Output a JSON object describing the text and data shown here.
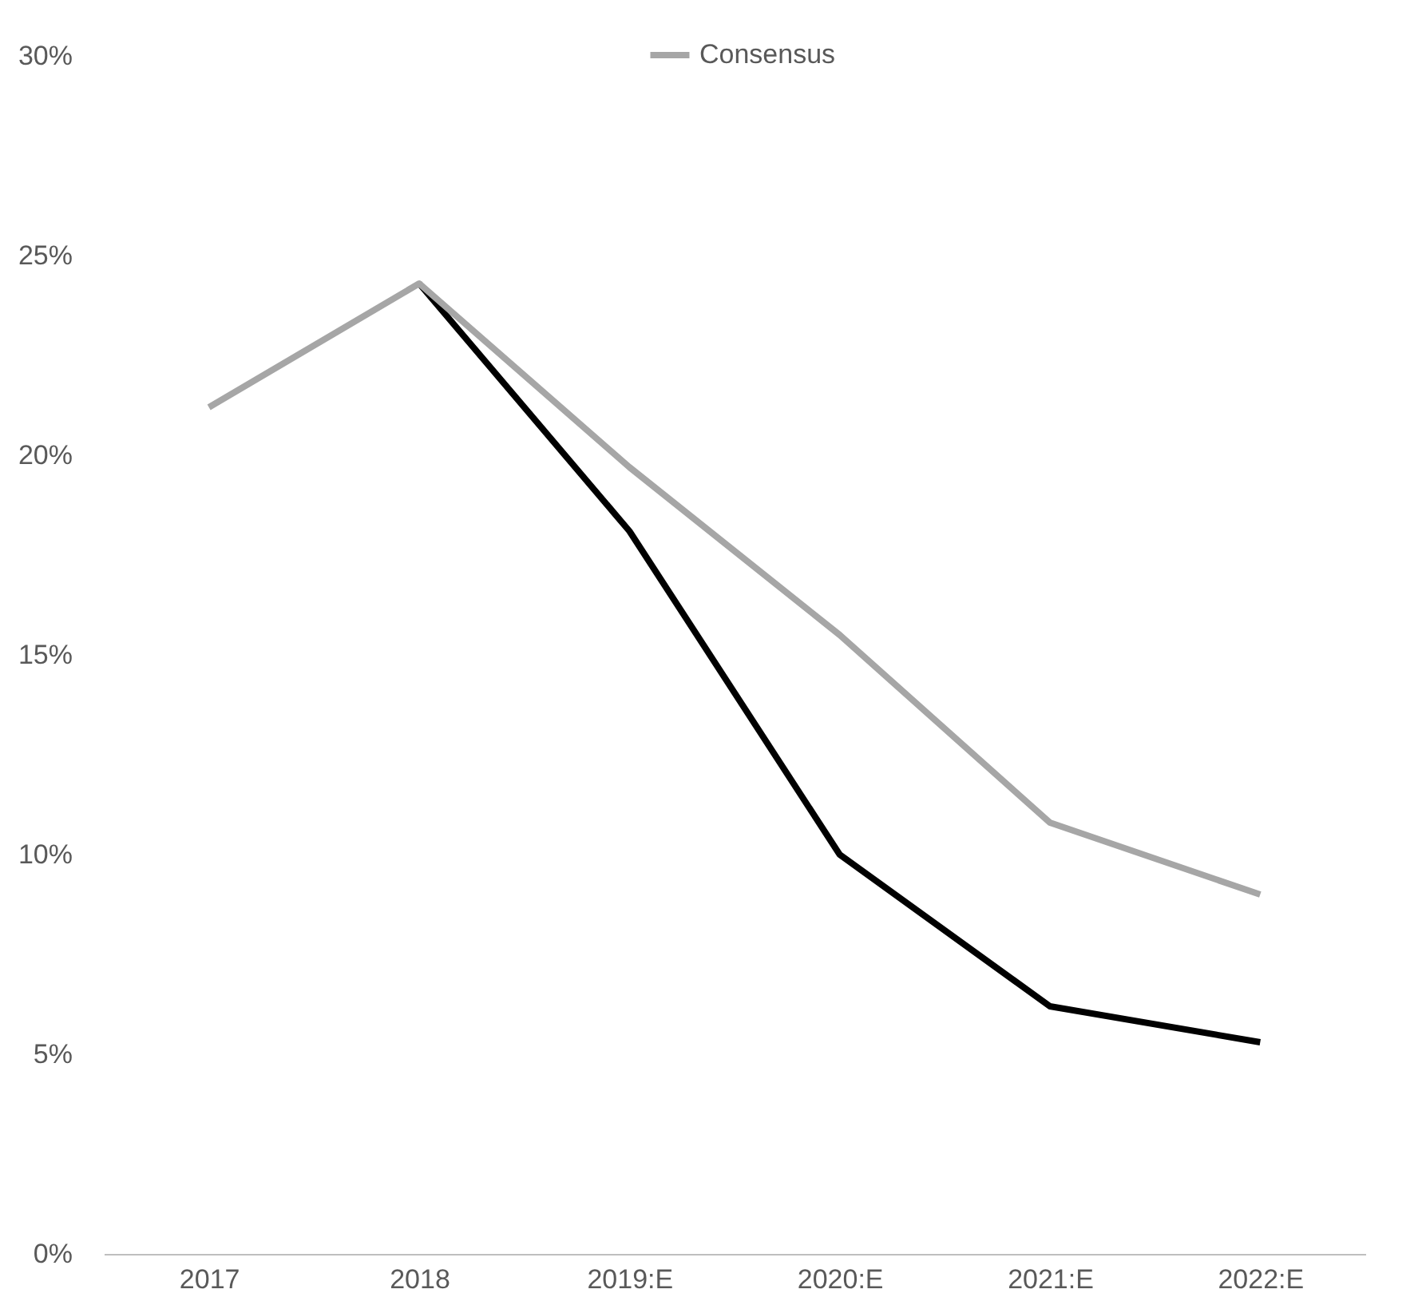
{
  "chart_data": {
    "type": "line",
    "categories": [
      "2017",
      "2018",
      "2019:E",
      "2020:E",
      "2021:E",
      "2022:E"
    ],
    "series": [
      {
        "color": "#000000",
        "values": [
          null,
          24.3,
          18.1,
          10.0,
          6.2,
          5.3
        ]
      },
      {
        "name": "Consensus",
        "color": "#a6a6a6",
        "values": [
          21.2,
          24.3,
          19.7,
          15.5,
          10.8,
          9.0
        ]
      }
    ],
    "ylim": [
      0,
      30
    ],
    "yticks": [
      {
        "value": 0,
        "label": "0%"
      },
      {
        "value": 5,
        "label": "5%"
      },
      {
        "value": 10,
        "label": "10%"
      },
      {
        "value": 15,
        "label": "15%"
      },
      {
        "value": 20,
        "label": "20%"
      },
      {
        "value": 25,
        "label": "25%"
      },
      {
        "value": 30,
        "label": "30%"
      }
    ],
    "grid": false,
    "legend": "top",
    "marker": "none",
    "line_style": "solid"
  }
}
